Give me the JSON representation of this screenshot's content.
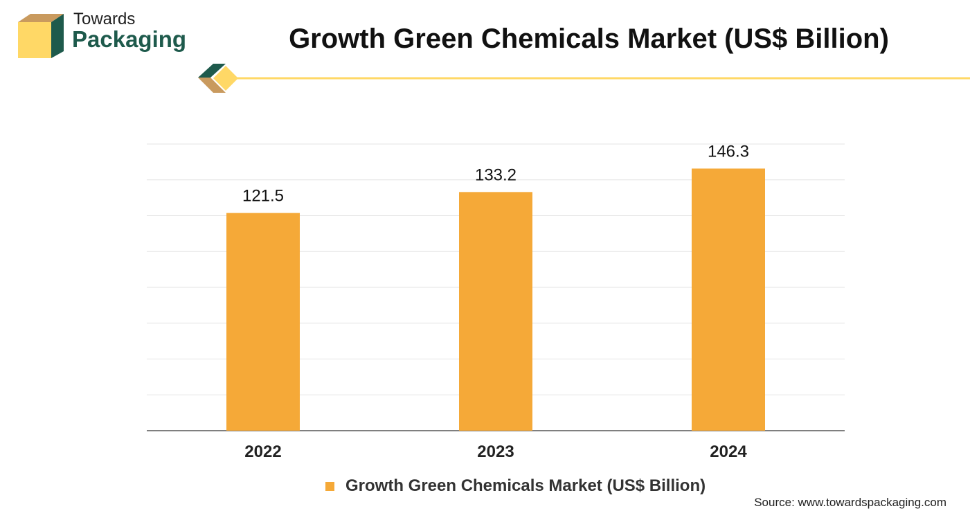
{
  "brand": {
    "line1": "Towards",
    "line2": "Packaging"
  },
  "colors": {
    "bar": "#F5A938",
    "accent_yellow": "#FFD866",
    "brand_green": "#1E5A4C",
    "brand_tan": "#C99A5E",
    "grid": "#E3E3E3",
    "axis": "#555555"
  },
  "chart_data": {
    "type": "bar",
    "title": "Growth Green Chemicals Market (US$ Billion)",
    "categories": [
      "2022",
      "2023",
      "2024"
    ],
    "series": [
      {
        "name": "Growth Green Chemicals Market (US$ Billion)",
        "values": [
          121.5,
          133.2,
          146.3
        ]
      }
    ],
    "data_labels": [
      "121.5",
      "133.2",
      "146.3"
    ],
    "xlabel": "",
    "ylabel": "",
    "ylim": [
      0,
      160
    ],
    "y_gridlines": [
      0,
      20,
      40,
      60,
      80,
      100,
      120,
      140,
      160
    ],
    "y_tick_labels_shown": false,
    "grid": true,
    "legend_position": "bottom"
  },
  "source": "Source: www.towardspackaging.com"
}
